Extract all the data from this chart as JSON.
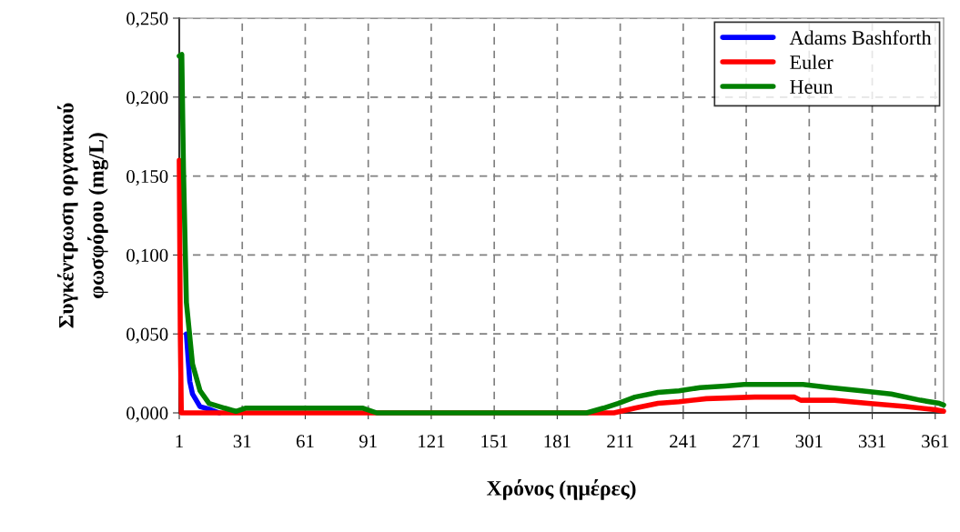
{
  "chart_data": {
    "type": "line",
    "xlabel": "Χρόνος (ημέρες)",
    "ylabel": "Συγκέντρωση οργανικού\nφωσφόρου (mg/L)",
    "xlim": [
      1,
      365
    ],
    "xticks": [
      1,
      31,
      61,
      91,
      121,
      151,
      181,
      211,
      241,
      271,
      301,
      331,
      361
    ],
    "ylim": [
      0,
      0.25
    ],
    "yticks": [
      {
        "value": 0,
        "label": "0,000"
      },
      {
        "value": 0.05,
        "label": "0,050"
      },
      {
        "value": 0.1,
        "label": "0,100"
      },
      {
        "value": 0.15,
        "label": "0,150"
      },
      {
        "value": 0.2,
        "label": "0,200"
      },
      {
        "value": 0.25,
        "label": "0,250"
      }
    ],
    "grid": true,
    "legend": "top right",
    "line_style": "solid",
    "marker": "none",
    "series": [
      {
        "name": "Adams Bashforth",
        "color": "#0000ff",
        "x": [
          4.4,
          6,
          7.3,
          10.9,
          16,
          20
        ],
        "values": [
          0.05,
          0.02,
          0.012,
          0.004,
          0.002,
          0
        ]
      },
      {
        "name": "Euler",
        "color": "#ff0000",
        "x": [
          1,
          1.5,
          2,
          100,
          200,
          208,
          218,
          229,
          239,
          252,
          275,
          294,
          297,
          313,
          329,
          347,
          361,
          365
        ],
        "values": [
          0.16,
          0.05,
          0,
          0,
          0,
          0,
          0.003,
          0.006,
          0.007,
          0.009,
          0.01,
          0.01,
          0.008,
          0.008,
          0.006,
          0.004,
          0.002,
          0.001
        ]
      },
      {
        "name": "Heun",
        "color": "#008000",
        "x": [
          1,
          2.2,
          3,
          4.4,
          7.3,
          10.9,
          15.2,
          22.6,
          28,
          32.5,
          88.5,
          95,
          195,
          203,
          210,
          218,
          229,
          239,
          249,
          261,
          270,
          298,
          311,
          326,
          340,
          354,
          363,
          365
        ],
        "values": [
          0.226,
          0.227,
          0.154,
          0.07,
          0.031,
          0.014,
          0.006,
          0.003,
          0.001,
          0.003,
          0.003,
          0,
          0,
          0.003,
          0.006,
          0.01,
          0.013,
          0.014,
          0.016,
          0.017,
          0.018,
          0.018,
          0.016,
          0.014,
          0.012,
          0.008,
          0.006,
          0.005
        ]
      }
    ]
  }
}
